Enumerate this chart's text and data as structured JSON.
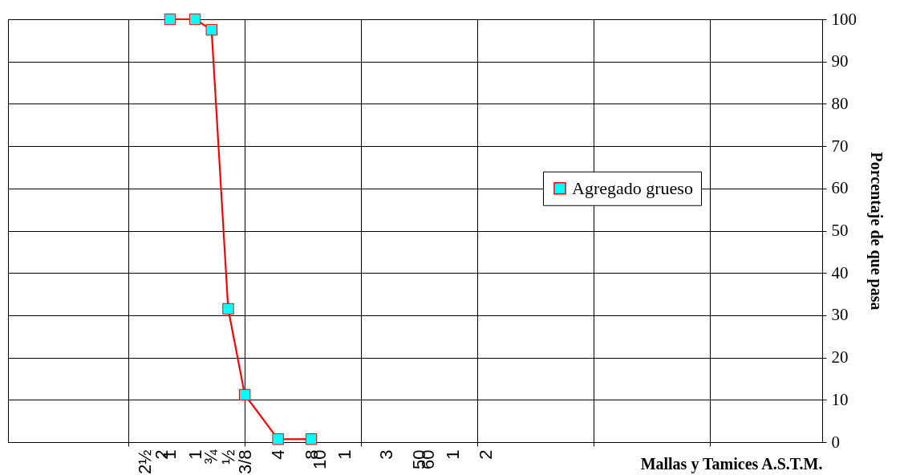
{
  "chart_data": {
    "type": "line",
    "xlabel": "Mallas y Tamices A.S.T.M.",
    "ylabel": "Porcentaje de que pasa",
    "categories": [
      null,
      null,
      null,
      null,
      null,
      null,
      null,
      null,
      null,
      null,
      null,
      null,
      null,
      null,
      null,
      null,
      "2½",
      null,
      "2",
      "1",
      null,
      null,
      "1",
      null,
      "¾",
      null,
      "½",
      null,
      "3/8",
      null,
      null,
      null,
      "4",
      null,
      null,
      null,
      "8",
      "10",
      null,
      null,
      "1",
      null,
      null,
      null,
      null,
      "3",
      null,
      null,
      null,
      "50",
      "60",
      null,
      null,
      "1",
      null,
      null,
      null,
      "2",
      null,
      null,
      null,
      null,
      null,
      null,
      null,
      null,
      null,
      null,
      null,
      null,
      null,
      null,
      null,
      null,
      null,
      null,
      null,
      null,
      null,
      null,
      null,
      null,
      null,
      null,
      null,
      null,
      null,
      null,
      null,
      null,
      null,
      null,
      null,
      null,
      null,
      null,
      null,
      null
    ],
    "series": [
      {
        "name": "Agregado grueso",
        "color": "#ff0000",
        "values": [
          null,
          null,
          null,
          null,
          null,
          null,
          null,
          null,
          null,
          null,
          null,
          null,
          null,
          null,
          null,
          null,
          null,
          null,
          null,
          100,
          null,
          null,
          100,
          null,
          97.5,
          null,
          31.5,
          null,
          11.2,
          null,
          null,
          null,
          0.7,
          null,
          null,
          null,
          0.7,
          null,
          null,
          null,
          null,
          null,
          null,
          null,
          null,
          null,
          null,
          null,
          null,
          null,
          null,
          null,
          null,
          null,
          null,
          null,
          null,
          null,
          null,
          null,
          null,
          null,
          null,
          null,
          null,
          null,
          null,
          null,
          null,
          null,
          null,
          null,
          null,
          null,
          null,
          null,
          null,
          null,
          null,
          null,
          null,
          null,
          null,
          null,
          null,
          null,
          null,
          null,
          null,
          null,
          null,
          null,
          null,
          null,
          null,
          null,
          null,
          null
        ]
      }
    ],
    "ylim": [
      0,
      100
    ],
    "yticks": [
      0,
      10,
      20,
      30,
      40,
      50,
      60,
      70,
      80,
      90,
      100
    ],
    "grid": true,
    "legend": "right",
    "marker": "square",
    "line_style": "solid"
  }
}
